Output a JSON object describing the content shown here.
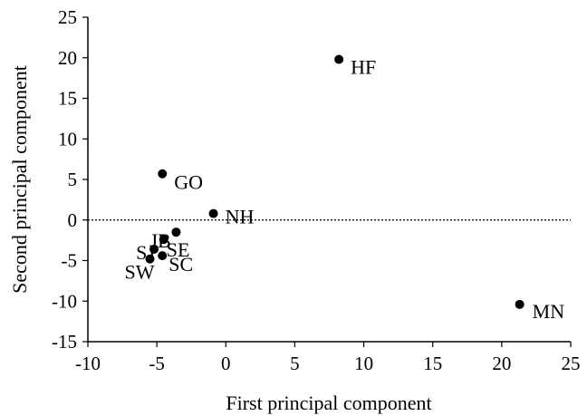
{
  "chart_data": {
    "type": "scatter",
    "xlabel": "First principal component",
    "ylabel": "Second principal component",
    "xlim": [
      -10,
      25
    ],
    "ylim": [
      -15,
      25
    ],
    "xticks": [
      "-10",
      "-5",
      "0",
      "5",
      "10",
      "15",
      "20",
      "25"
    ],
    "yticks": [
      "-15",
      "-10",
      "-5",
      "0",
      "5",
      "10",
      "15",
      "20",
      "25"
    ],
    "reference_line_y": 0,
    "points": [
      {
        "label": "HF",
        "x": 8.2,
        "y": 19.8
      },
      {
        "label": "GO",
        "x": -4.6,
        "y": 5.7
      },
      {
        "label": "NH",
        "x": -0.9,
        "y": 0.8
      },
      {
        "label": "JB",
        "x": -3.6,
        "y": -1.5
      },
      {
        "label": "SE",
        "x": -4.5,
        "y": -2.4
      },
      {
        "label": "SJ",
        "x": -5.2,
        "y": -3.6
      },
      {
        "label": "SC",
        "x": -4.6,
        "y": -4.4
      },
      {
        "label": "SW",
        "x": -5.5,
        "y": -4.8
      },
      {
        "label": "MN",
        "x": 21.3,
        "y": -10.4
      }
    ],
    "colors": {
      "points": "#000000",
      "axes": "#000000"
    }
  }
}
